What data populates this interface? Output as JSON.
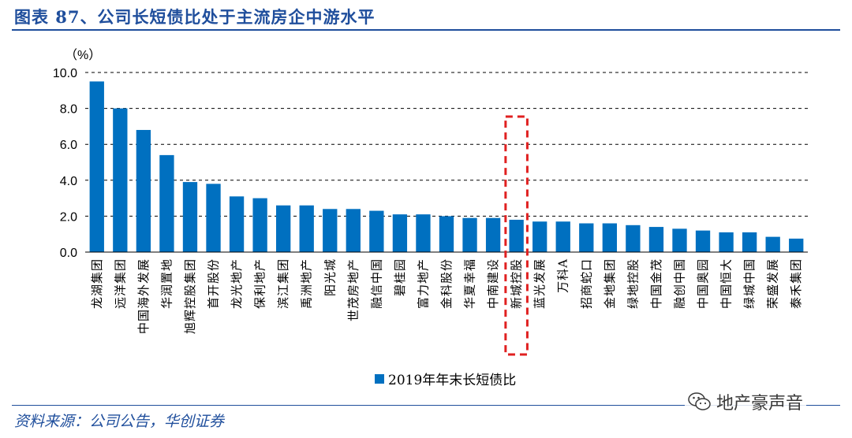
{
  "header": {
    "title": "图表 87、公司长短债比处于主流房企中游水平"
  },
  "footer": {
    "source": "资料来源：公司公告，华创证券"
  },
  "watermark": {
    "text": "地产豪声音",
    "icon": "wechat-icon"
  },
  "colors": {
    "bar": "#0070c0",
    "highlight": "#e02020",
    "title": "#1f4e9c"
  },
  "chart_data": {
    "type": "bar",
    "unit_label": "（%）",
    "ylim": [
      0,
      10
    ],
    "yticks": [
      "0.0",
      "2.0",
      "4.0",
      "6.0",
      "8.0",
      "10.0"
    ],
    "grid": "horizontal-dashed",
    "legend_position": "bottom",
    "categories": [
      "龙湖集团",
      "远洋集团",
      "中国海外发展",
      "华润置地",
      "旭辉控股集团",
      "首开股份",
      "龙光地产",
      "保利地产",
      "滨江集团",
      "禹洲地产",
      "阳光城",
      "世茂房地产",
      "融信中国",
      "碧桂园",
      "富力地产",
      "金科股份",
      "华夏幸福",
      "中南建设",
      "新城控股",
      "蓝光发展",
      "万科A",
      "招商蛇口",
      "金地集团",
      "绿地控股",
      "中国金茂",
      "融创中国",
      "中国奥园",
      "中国恒大",
      "绿城中国",
      "荣盛发展",
      "泰禾集团"
    ],
    "series": [
      {
        "name": "2019年年末长短债比",
        "values": [
          9.5,
          8.0,
          6.8,
          5.4,
          3.9,
          3.8,
          3.1,
          3.0,
          2.6,
          2.6,
          2.4,
          2.4,
          2.3,
          2.1,
          2.1,
          2.0,
          1.9,
          1.9,
          1.8,
          1.7,
          1.7,
          1.6,
          1.6,
          1.5,
          1.4,
          1.3,
          1.2,
          1.1,
          1.1,
          0.85,
          0.75
        ]
      }
    ],
    "highlighted_category": "新城控股"
  }
}
